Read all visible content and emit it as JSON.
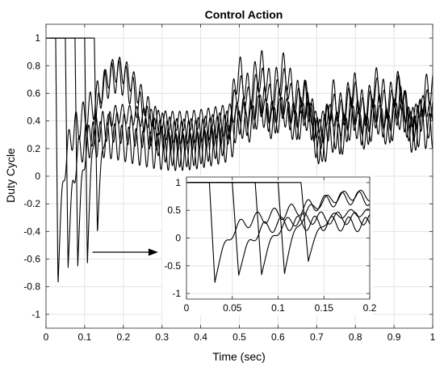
{
  "chart_data": {
    "type": "line",
    "title": "Control Action",
    "xlabel": "Time (sec)",
    "ylabel": "Duty Cycle",
    "xlim": [
      0,
      1
    ],
    "ylim": [
      -1.1,
      1.1
    ],
    "xticks": [
      0,
      0.1,
      0.2,
      0.3,
      0.4,
      0.5,
      0.6,
      0.7,
      0.8,
      0.9,
      1
    ],
    "xtick_labels": [
      "0",
      "0.1",
      "0.2",
      "0.3",
      "0.4",
      "0.5",
      "0.6",
      "0.7",
      "0.8",
      "0.9",
      "1"
    ],
    "yticks": [
      1,
      0.8,
      0.6,
      0.4,
      0.2,
      0,
      -0.2,
      -0.4,
      -0.6,
      -0.8,
      -1
    ],
    "ytick_labels": [
      "1",
      "0.8",
      "0.6",
      "0.4",
      "0.2",
      "0",
      "-0.2",
      "-0.4",
      "-0.6",
      "-0.8",
      "-1"
    ],
    "grid": true,
    "line_color": "#000000",
    "series": [
      {
        "t_off": 0.025,
        "t_min": 0.031,
        "y_min": -0.8,
        "d_amp": 0.42,
        "d_mid": 0.9,
        "b_amp": 0.08,
        "b_mid": 0.26,
        "b_period": 0.45,
        "p2_start": 0.46,
        "p2_mid": 0.7,
        "p2_amp": 0.08,
        "p2_period": 0.25,
        "ripple_period": 0.0185,
        "ripple_amp": 0.12
      },
      {
        "t_off": 0.05,
        "t_min": 0.057,
        "y_min": -0.67,
        "d_amp": 0.0,
        "d_mid": 0.0,
        "b_amp": 0.05,
        "b_mid": 0.22,
        "b_period": 0.45,
        "p2_start": 0.48,
        "p2_mid": 0.48,
        "p2_amp": 0.07,
        "p2_period": 0.25,
        "ripple_period": 0.0185,
        "ripple_amp": 0.13
      },
      {
        "t_off": 0.075,
        "t_min": 0.082,
        "y_min": -0.66,
        "d_amp": 0.0,
        "d_mid": 0.0,
        "b_amp": 0.04,
        "b_mid": 0.33,
        "b_period": 0.45,
        "p2_start": 0.5,
        "p2_mid": 0.4,
        "p2_amp": 0.05,
        "p2_period": 0.25,
        "ripple_period": 0.0185,
        "ripple_amp": 0.11
      },
      {
        "t_off": 0.1,
        "t_min": 0.107,
        "y_min": -0.64,
        "d_amp": 0.38,
        "d_mid": 0.83,
        "b_amp": 0.05,
        "b_mid": 0.37,
        "b_period": 0.45,
        "p2_start": 0.47,
        "p2_mid": 0.62,
        "p2_amp": 0.07,
        "p2_period": 0.25,
        "ripple_period": 0.0185,
        "ripple_amp": 0.09
      },
      {
        "t_off": 0.125,
        "t_min": 0.133,
        "y_min": -0.42,
        "d_amp": 0.0,
        "d_mid": 0.0,
        "b_amp": 0.04,
        "b_mid": 0.44,
        "b_period": 0.45,
        "p2_start": 0.52,
        "p2_mid": 0.44,
        "p2_amp": 0.04,
        "p2_period": 0.25,
        "ripple_period": 0.0185,
        "ripple_amp": 0.07
      }
    ],
    "inset": {
      "xlim": [
        0,
        0.2
      ],
      "ylim": [
        -1.1,
        1.1
      ],
      "xticks": [
        0,
        0.05,
        0.1,
        0.15,
        0.2
      ],
      "xtick_labels": [
        "0",
        "0.05",
        "0.1",
        "0.15",
        "0.2"
      ],
      "yticks": [
        1,
        0.5,
        0,
        -0.5,
        -1
      ],
      "ytick_labels": [
        "1",
        "0.5",
        "0",
        "-0.5",
        "-1"
      ],
      "grid": true
    },
    "annotation": {
      "type": "arrow",
      "from": [
        0.12,
        -0.55
      ],
      "to": [
        0.29,
        -0.55
      ]
    }
  }
}
